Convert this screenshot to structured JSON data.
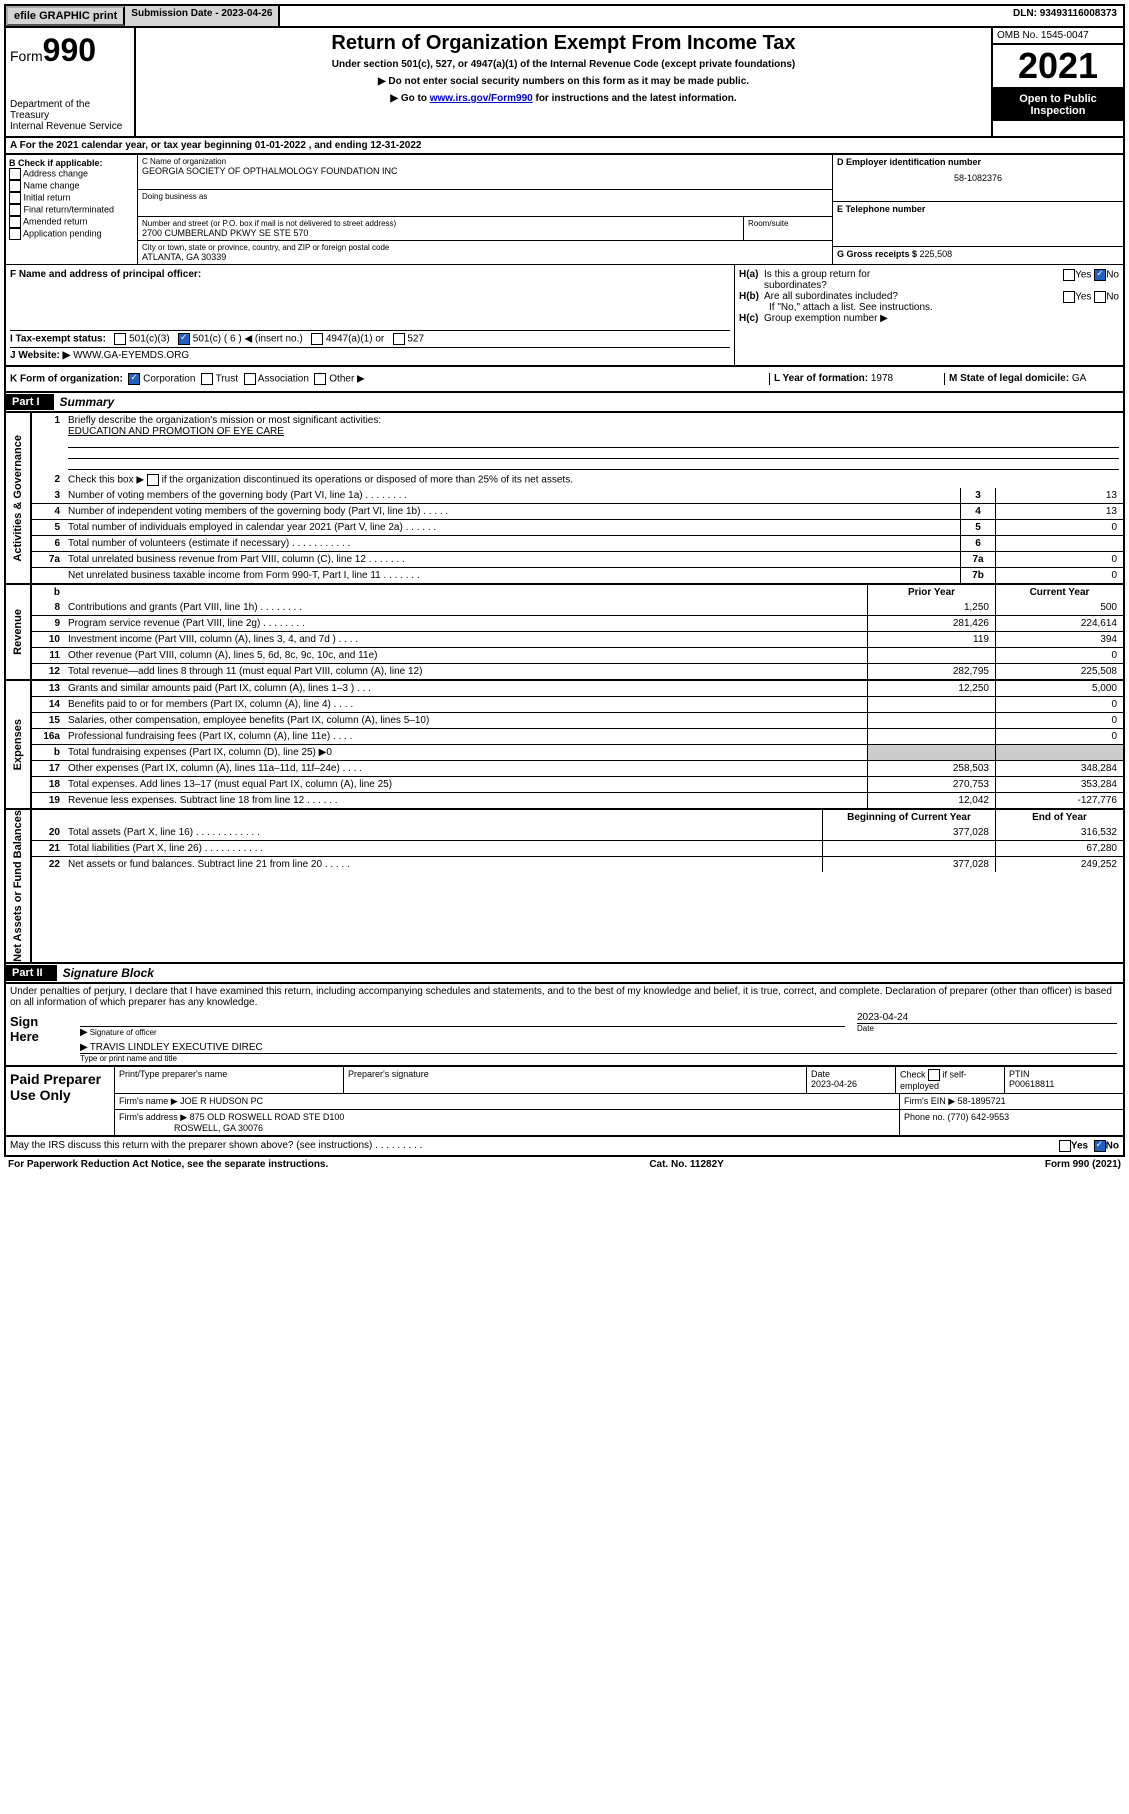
{
  "topbar": {
    "efile": "efile GRAPHIC print",
    "subdate_lbl": "Submission Date - ",
    "subdate": "2023-04-26",
    "dln_lbl": "DLN: ",
    "dln": "93493116008373"
  },
  "header": {
    "form_prefix": "Form",
    "form_num": "990",
    "dept": "Department of the Treasury",
    "irs": "Internal Revenue Service",
    "title": "Return of Organization Exempt From Income Tax",
    "sub1": "Under section 501(c), 527, or 4947(a)(1) of the Internal Revenue Code (except private foundations)",
    "sub2": "Do not enter social security numbers on this form as it may be made public.",
    "sub3_a": "Go to ",
    "sub3_link": "www.irs.gov/Form990",
    "sub3_b": " for instructions and the latest information.",
    "omb": "OMB No. 1545-0047",
    "year": "2021",
    "open": "Open to Public Inspection"
  },
  "A": {
    "text_a": "For the 2021 calendar year, or tax year beginning ",
    "begin": "01-01-2022",
    "text_b": " , and ending ",
    "end": "12-31-2022"
  },
  "B": {
    "hdr": "B Check if applicable:",
    "items": [
      "Address change",
      "Name change",
      "Initial return",
      "Final return/terminated",
      "Amended return",
      "Application pending"
    ]
  },
  "C": {
    "name_lbl": "C Name of organization",
    "name": "GEORGIA SOCIETY OF OPTHALMOLOGY FOUNDATION INC",
    "dba_lbl": "Doing business as",
    "addr_lbl": "Number and street (or P.O. box if mail is not delivered to street address)",
    "room_lbl": "Room/suite",
    "addr": "2700 CUMBERLAND PKWY SE STE 570",
    "city_lbl": "City or town, state or province, country, and ZIP or foreign postal code",
    "city": "ATLANTA, GA  30339"
  },
  "D": {
    "lbl": "D Employer identification number",
    "val": "58-1082376"
  },
  "E": {
    "lbl": "E Telephone number"
  },
  "G": {
    "lbl": "G Gross receipts $ ",
    "val": "225,508"
  },
  "F": {
    "lbl": "F  Name and address of principal officer:"
  },
  "H": {
    "a_lbl": "H(a)  Is this a group return for subordinates?",
    "yes": "Yes",
    "no": "No",
    "b_lbl": "H(b)  Are all subordinates included?",
    "b_note": "If \"No,\" attach a list. See instructions.",
    "c_lbl": "H(c)  Group exemption number ▶"
  },
  "I": {
    "lbl": "I    Tax-exempt status:",
    "opts": [
      "501(c)(3)",
      "501(c) ( 6 ) ◀ (insert no.)",
      "4947(a)(1) or",
      "527"
    ]
  },
  "J": {
    "lbl": "J    Website: ▶",
    "val": " WWW.GA-EYEMDS.ORG"
  },
  "K": {
    "lbl": "K Form of organization:",
    "opts": [
      "Corporation",
      "Trust",
      "Association",
      "Other ▶"
    ]
  },
  "L": {
    "lbl": "L Year of formation: ",
    "val": "1978"
  },
  "M": {
    "lbl": "M State of legal domicile: ",
    "val": "GA"
  },
  "part1": {
    "num": "Part I",
    "title": "Summary"
  },
  "gov": {
    "q1": "Briefly describe the organization's mission or most significant activities:",
    "q1v": "EDUCATION AND PROMOTION OF EYE CARE",
    "q2": "Check this box ▶        if the organization discontinued its operations or disposed of more than 25% of its net assets.",
    "rows": [
      {
        "n": "3",
        "d": "Number of voting members of the governing body (Part VI, line 1a)  .    .    .    .    .    .    .    .",
        "k": "3",
        "v": "13"
      },
      {
        "n": "4",
        "d": "Number of independent voting members of the governing body (Part VI, line 1b)  .    .    .    .    .",
        "k": "4",
        "v": "13"
      },
      {
        "n": "5",
        "d": "Total number of individuals employed in calendar year 2021 (Part V, line 2a)  .    .    .    .    .    .",
        "k": "5",
        "v": "0"
      },
      {
        "n": "6",
        "d": "Total number of volunteers (estimate if necessary)  .    .    .    .    .    .    .    .    .    .    .",
        "k": "6",
        "v": ""
      },
      {
        "n": "7a",
        "d": "Total unrelated business revenue from Part VIII, column (C), line 12  .    .    .    .    .    .    .",
        "k": "7a",
        "v": "0"
      },
      {
        "n": "",
        "d": "Net unrelated business taxable income from Form 990-T, Part I, line 11  .    .    .    .    .    .    .",
        "k": "7b",
        "v": "0"
      }
    ]
  },
  "rev": {
    "hdr_b": "b",
    "hdr_py": "Prior Year",
    "hdr_cy": "Current Year",
    "rows": [
      {
        "n": "8",
        "d": "Contributions and grants (Part VIII, line 1h)  .    .    .    .    .    .    .    .",
        "py": "1,250",
        "cy": "500"
      },
      {
        "n": "9",
        "d": "Program service revenue (Part VIII, line 2g)  .    .    .    .    .    .    .    .",
        "py": "281,426",
        "cy": "224,614"
      },
      {
        "n": "10",
        "d": "Investment income (Part VIII, column (A), lines 3, 4, and 7d )  .    .    .    .",
        "py": "119",
        "cy": "394"
      },
      {
        "n": "11",
        "d": "Other revenue (Part VIII, column (A), lines 5, 6d, 8c, 9c, 10c, and 11e)",
        "py": "",
        "cy": "0"
      },
      {
        "n": "12",
        "d": "Total revenue—add lines 8 through 11 (must equal Part VIII, column (A), line 12)",
        "py": "282,795",
        "cy": "225,508"
      }
    ]
  },
  "exp": {
    "rows": [
      {
        "n": "13",
        "d": "Grants and similar amounts paid (Part IX, column (A), lines 1–3 )  .    .    .",
        "py": "12,250",
        "cy": "5,000"
      },
      {
        "n": "14",
        "d": "Benefits paid to or for members (Part IX, column (A), line 4)  .    .    .    .",
        "py": "",
        "cy": "0"
      },
      {
        "n": "15",
        "d": "Salaries, other compensation, employee benefits (Part IX, column (A), lines 5–10)",
        "py": "",
        "cy": "0"
      },
      {
        "n": "16a",
        "d": "Professional fundraising fees (Part IX, column (A), line 11e)  .    .    .    .",
        "py": "",
        "cy": "0"
      },
      {
        "n": "b",
        "d": "Total fundraising expenses (Part IX, column (D), line 25) ▶0",
        "py": "shade",
        "cy": "shade"
      },
      {
        "n": "17",
        "d": "Other expenses (Part IX, column (A), lines 11a–11d, 11f–24e)  .    .    .    .",
        "py": "258,503",
        "cy": "348,284"
      },
      {
        "n": "18",
        "d": "Total expenses. Add lines 13–17 (must equal Part IX, column (A), line 25)",
        "py": "270,753",
        "cy": "353,284"
      },
      {
        "n": "19",
        "d": "Revenue less expenses. Subtract line 18 from line 12  .    .    .    .    .    .",
        "py": "12,042",
        "cy": "-127,776"
      }
    ]
  },
  "net": {
    "hdr_b": "Beginning of Current Year",
    "hdr_e": "End of Year",
    "rows": [
      {
        "n": "20",
        "d": "Total assets (Part X, line 16)  .    .    .    .    .    .    .    .    .    .    .    .",
        "py": "377,028",
        "cy": "316,532"
      },
      {
        "n": "21",
        "d": "Total liabilities (Part X, line 26)  .    .    .    .    .    .    .    .    .    .    .",
        "py": "",
        "cy": "67,280"
      },
      {
        "n": "22",
        "d": "Net assets or fund balances. Subtract line 21 from line 20  .    .    .    .    .",
        "py": "377,028",
        "cy": "249,252"
      }
    ]
  },
  "part2": {
    "num": "Part II",
    "title": "Signature Block"
  },
  "penalty": "Under penalties of perjury, I declare that I have examined this return, including accompanying schedules and statements, and to the best of my knowledge and belief, it is true, correct, and complete. Declaration of preparer (other than officer) is based on all information of which preparer has any knowledge.",
  "sign": {
    "here": "Sign Here",
    "sig_lbl": "Signature of officer",
    "date_lbl": "Date",
    "date": "2023-04-24",
    "name": "TRAVIS LINDLEY EXECUTIVE DIREC",
    "name_lbl": "Type or print name and title"
  },
  "prep": {
    "hdr": "Paid Preparer Use Only",
    "c1": "Print/Type preparer's name",
    "c2": "Preparer's signature",
    "c3": "Date",
    "c3v": "2023-04-26",
    "c4a": "Check",
    "c4b": "if self-employed",
    "c5": "PTIN",
    "c5v": "P00618811",
    "firm_lbl": "Firm's name    ▶ ",
    "firm": "JOE R HUDSON PC",
    "ein_lbl": "Firm's EIN ▶ ",
    "ein": "58-1895721",
    "addr_lbl": "Firm's address ▶ ",
    "addr1": "875 OLD ROSWELL ROAD STE D100",
    "addr2": "ROSWELL, GA  30076",
    "phone_lbl": "Phone no. ",
    "phone": "(770) 642-9553"
  },
  "discuss": "May the IRS discuss this return with the preparer shown above? (see instructions)  .    .    .    .    .    .    .    .    .",
  "footer": {
    "pra": "For Paperwork Reduction Act Notice, see the separate instructions.",
    "cat": "Cat. No. 11282Y",
    "form": "Form 990 (2021)"
  },
  "vlabels": {
    "gov": "Activities & Governance",
    "rev": "Revenue",
    "exp": "Expenses",
    "net": "Net Assets or Fund Balances"
  }
}
